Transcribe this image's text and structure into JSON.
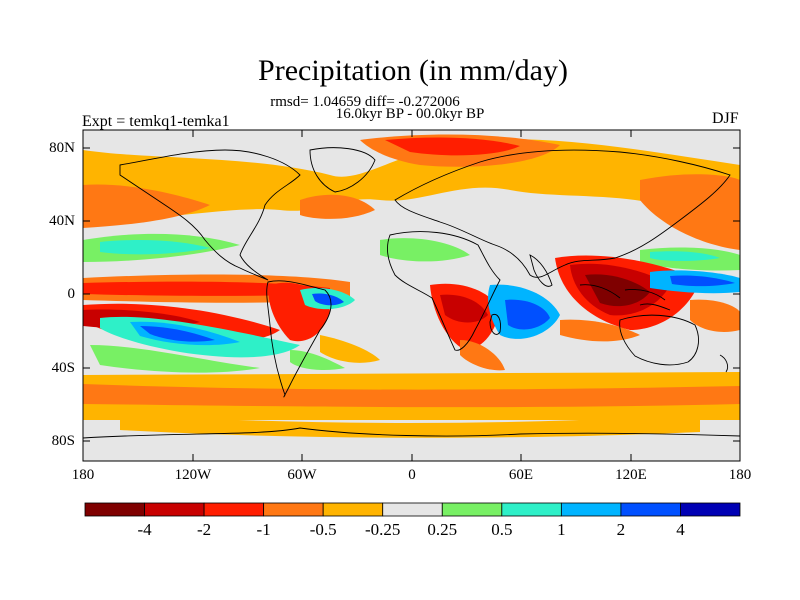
{
  "title": "Precipitation (in mm/day)",
  "stats_line": "rmsd= 1.04659 diff= -0.272006",
  "period_line": "16.0kyr BP - 00.0kyr BP",
  "experiment_label": "Expt = temkq1-temka1",
  "season_label": "DJF",
  "map": {
    "projection": "cylindrical equidistant",
    "lat_range": [
      -90,
      90
    ],
    "lon_range": [
      -180,
      180
    ],
    "lat_ticks": [
      "80N",
      "40N",
      "0",
      "40S",
      "80S"
    ],
    "lon_ticks": [
      "180",
      "120W",
      "60W",
      "0",
      "60E",
      "120E",
      "180"
    ],
    "background_color": "#e6e6e6"
  },
  "colorbar": {
    "colors": [
      "#7f0000",
      "#c80000",
      "#ff1e00",
      "#ff7814",
      "#ffb400",
      "#e6e6e6",
      "#78f064",
      "#2ef0c8",
      "#00b4ff",
      "#0050ff",
      "#0000b4"
    ],
    "labels": [
      "-4",
      "-2",
      "-1",
      "-0.5",
      "-0.25",
      "0.25",
      "0.5",
      "1",
      "2",
      "4"
    ]
  }
}
